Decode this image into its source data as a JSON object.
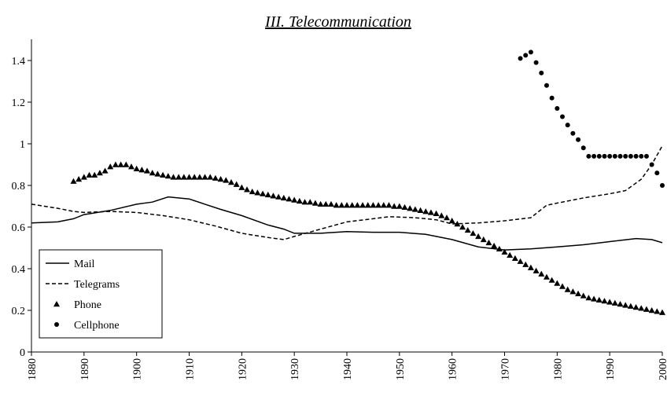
{
  "chart_data": {
    "type": "line",
    "title": "III. Telecommunication",
    "xlim": [
      1880,
      2000
    ],
    "xticks": [
      1880,
      1890,
      1900,
      1910,
      1920,
      1930,
      1940,
      1950,
      1960,
      1970,
      1980,
      1990,
      2000
    ],
    "ylim": [
      0,
      1.4
    ],
    "yticks": [
      0,
      0.2,
      0.4,
      0.6,
      0.8,
      1,
      1.2,
      1.4
    ],
    "legend": "lower left",
    "series": [
      {
        "name": "Mail",
        "color": "#000000",
        "style": "solid",
        "x": [
          1880,
          1885,
          1888,
          1890,
          1895,
          1900,
          1903,
          1906,
          1910,
          1913,
          1916,
          1920,
          1925,
          1928,
          1930,
          1935,
          1940,
          1945,
          1950,
          1955,
          1960,
          1965,
          1970,
          1975,
          1980,
          1985,
          1990,
          1995,
          1998,
          2000
        ],
        "values": [
          0.62,
          0.625,
          0.64,
          0.66,
          0.68,
          0.71,
          0.72,
          0.745,
          0.735,
          0.71,
          0.685,
          0.655,
          0.61,
          0.59,
          0.57,
          0.57,
          0.578,
          0.575,
          0.575,
          0.565,
          0.54,
          0.505,
          0.49,
          0.495,
          0.505,
          0.515,
          0.53,
          0.545,
          0.54,
          0.525
        ]
      },
      {
        "name": "Telegrams",
        "color": "#000000",
        "style": "dashed",
        "x": [
          1880,
          1885,
          1888,
          1890,
          1895,
          1900,
          1905,
          1910,
          1915,
          1920,
          1925,
          1928,
          1930,
          1935,
          1940,
          1945,
          1948,
          1953,
          1957,
          1960,
          1965,
          1970,
          1975,
          1978,
          1980,
          1985,
          1990,
          1993,
          1996,
          1998,
          2000
        ],
        "values": [
          0.71,
          0.69,
          0.675,
          0.67,
          0.675,
          0.67,
          0.655,
          0.635,
          0.605,
          0.57,
          0.55,
          0.54,
          0.555,
          0.59,
          0.625,
          0.64,
          0.65,
          0.645,
          0.635,
          0.615,
          0.62,
          0.63,
          0.645,
          0.705,
          0.715,
          0.74,
          0.76,
          0.775,
          0.83,
          0.9,
          0.99
        ]
      },
      {
        "name": "Phone",
        "color": "#000000",
        "marker": "triangle",
        "x": [
          1888,
          1889,
          1890,
          1891,
          1892,
          1893,
          1894,
          1895,
          1896,
          1897,
          1898,
          1899,
          1900,
          1901,
          1902,
          1903,
          1904,
          1905,
          1906,
          1907,
          1908,
          1909,
          1910,
          1911,
          1912,
          1913,
          1914,
          1915,
          1916,
          1917,
          1918,
          1919,
          1920,
          1921,
          1922,
          1923,
          1924,
          1925,
          1926,
          1927,
          1928,
          1929,
          1930,
          1931,
          1932,
          1933,
          1934,
          1935,
          1936,
          1937,
          1938,
          1939,
          1940,
          1941,
          1942,
          1943,
          1944,
          1945,
          1946,
          1947,
          1948,
          1949,
          1950,
          1951,
          1952,
          1953,
          1954,
          1955,
          1956,
          1957,
          1958,
          1959,
          1960,
          1961,
          1962,
          1963,
          1964,
          1965,
          1966,
          1967,
          1968,
          1969,
          1970,
          1971,
          1972,
          1973,
          1974,
          1975,
          1976,
          1977,
          1978,
          1979,
          1980,
          1981,
          1982,
          1983,
          1984,
          1985,
          1986,
          1987,
          1988,
          1989,
          1990,
          1991,
          1992,
          1993,
          1994,
          1995,
          1996,
          1997,
          1998,
          1999,
          2000
        ],
        "values": [
          0.82,
          0.83,
          0.84,
          0.85,
          0.85,
          0.86,
          0.87,
          0.89,
          0.9,
          0.9,
          0.9,
          0.89,
          0.88,
          0.875,
          0.87,
          0.86,
          0.855,
          0.85,
          0.845,
          0.84,
          0.84,
          0.84,
          0.84,
          0.84,
          0.84,
          0.84,
          0.84,
          0.835,
          0.83,
          0.825,
          0.815,
          0.805,
          0.79,
          0.78,
          0.77,
          0.765,
          0.76,
          0.755,
          0.75,
          0.745,
          0.74,
          0.735,
          0.73,
          0.725,
          0.72,
          0.72,
          0.715,
          0.71,
          0.71,
          0.71,
          0.705,
          0.705,
          0.705,
          0.705,
          0.705,
          0.705,
          0.705,
          0.705,
          0.705,
          0.705,
          0.705,
          0.7,
          0.7,
          0.695,
          0.69,
          0.685,
          0.68,
          0.675,
          0.67,
          0.665,
          0.655,
          0.645,
          0.63,
          0.615,
          0.6,
          0.585,
          0.57,
          0.555,
          0.54,
          0.525,
          0.51,
          0.495,
          0.48,
          0.465,
          0.45,
          0.435,
          0.42,
          0.405,
          0.39,
          0.375,
          0.36,
          0.345,
          0.33,
          0.315,
          0.3,
          0.29,
          0.28,
          0.27,
          0.26,
          0.255,
          0.25,
          0.245,
          0.24,
          0.235,
          0.23,
          0.225,
          0.22,
          0.215,
          0.21,
          0.205,
          0.2,
          0.195,
          0.19
        ]
      },
      {
        "name": "Cellphone",
        "color": "#000000",
        "marker": "circle",
        "x": [
          1973,
          1974,
          1975,
          1976,
          1977,
          1978,
          1979,
          1980,
          1981,
          1982,
          1983,
          1984,
          1985,
          1986,
          1987,
          1988,
          1989,
          1990,
          1991,
          1992,
          1993,
          1994,
          1995,
          1996,
          1997,
          1998,
          1999,
          2000
        ],
        "values": [
          1.41,
          1.425,
          1.44,
          1.39,
          1.34,
          1.28,
          1.22,
          1.17,
          1.13,
          1.09,
          1.05,
          1.02,
          0.98,
          0.94,
          0.94,
          0.94,
          0.94,
          0.94,
          0.94,
          0.94,
          0.94,
          0.94,
          0.94,
          0.94,
          0.94,
          0.9,
          0.86,
          0.8
        ]
      }
    ]
  }
}
